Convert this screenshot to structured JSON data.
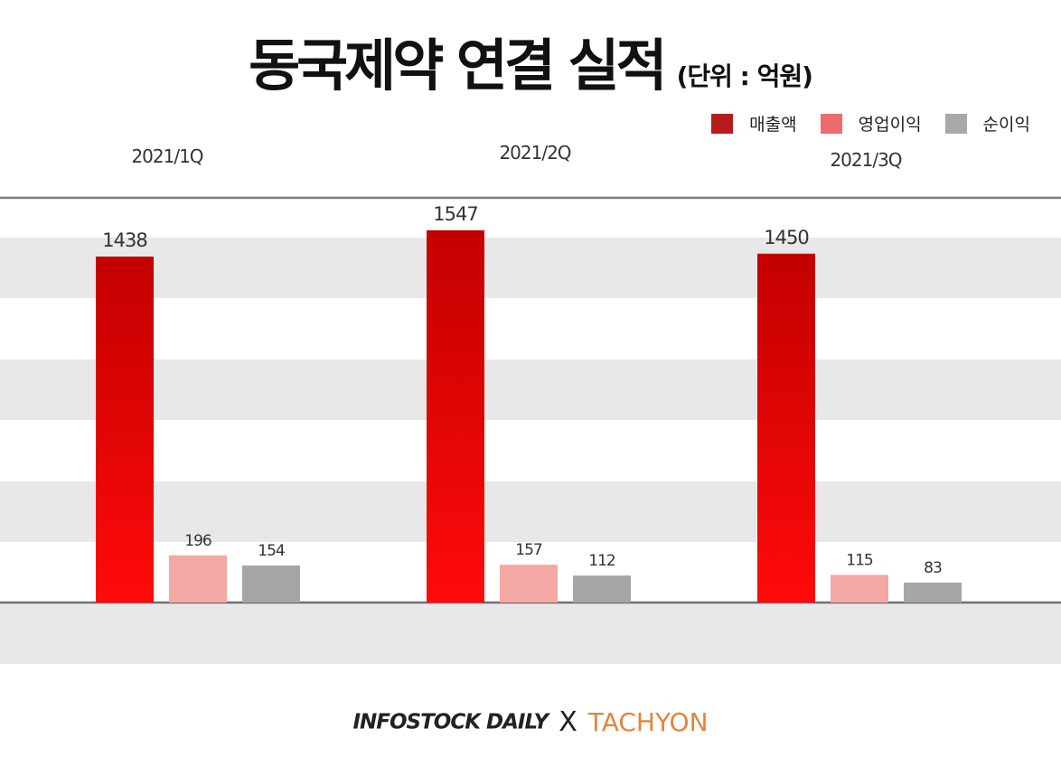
{
  "header": {
    "title": "동국제약 연결 실적",
    "unit": "(단위 : 억원)"
  },
  "legend": [
    {
      "label": "매출액",
      "color": "#b71c1c"
    },
    {
      "label": "영업이익",
      "color": "#ee6b6b"
    },
    {
      "label": "순이익",
      "color": "#a8a8a8"
    }
  ],
  "chart_data": {
    "type": "bar",
    "title": "동국제약 연결 실적",
    "unit": "(단위 : 억원)",
    "categories": [
      "2021/1Q",
      "2021/2Q",
      "2021/3Q"
    ],
    "series": [
      {
        "name": "매출액",
        "values": [
          1438,
          1547,
          1450
        ],
        "color": "#e00000"
      },
      {
        "name": "영업이익",
        "values": [
          196,
          157,
          115
        ],
        "color": "#f3a8a3"
      },
      {
        "name": "순이익",
        "values": [
          154,
          112,
          83
        ],
        "color": "#a6a6a6"
      }
    ],
    "grid": "alternating horizontal bands",
    "legend_position": "top-right"
  },
  "footer": {
    "brand_left": "INFOSTOCK DAILY",
    "separator": "X",
    "brand_right": "TACHYON"
  }
}
